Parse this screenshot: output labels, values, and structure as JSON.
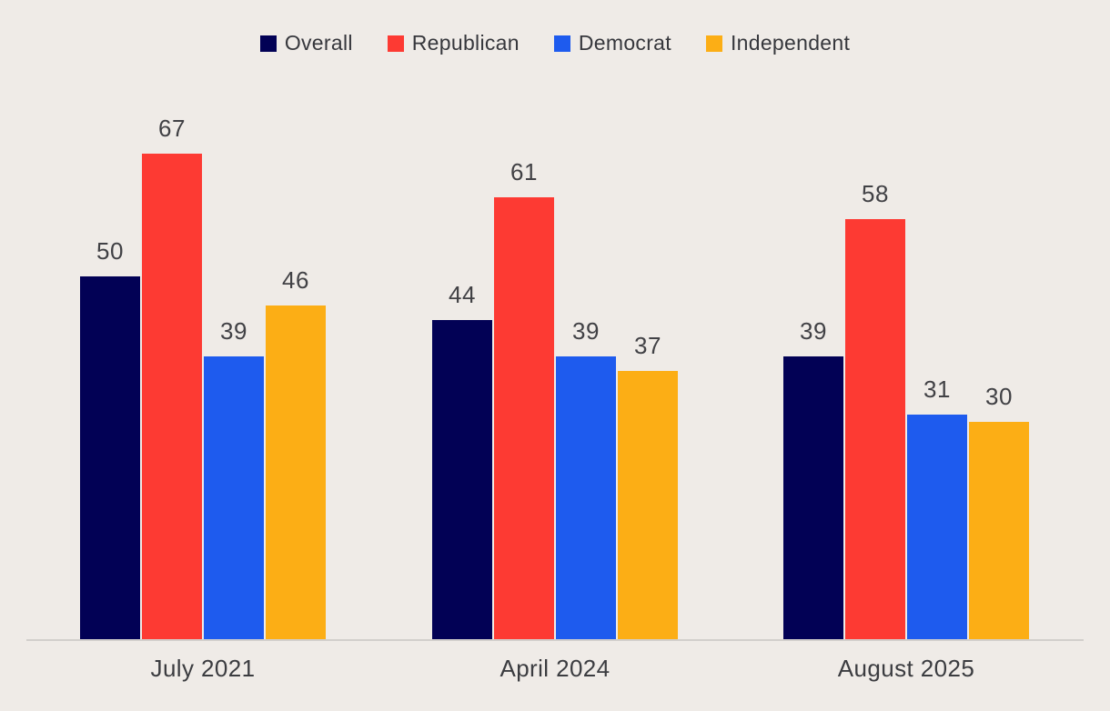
{
  "background_color": "#efebe7",
  "axis_line_color": "#d2cfcc",
  "text_color": "#3d3e42",
  "chart_data": {
    "type": "bar",
    "title": "",
    "xlabel": "",
    "ylabel": "",
    "categories": [
      "July 2021",
      "April 2024",
      "August 2025"
    ],
    "series": [
      {
        "name": "Overall",
        "color": "#020155",
        "values": [
          50,
          44,
          39
        ]
      },
      {
        "name": "Republican",
        "color": "#fd3a33",
        "values": [
          67,
          61,
          58
        ]
      },
      {
        "name": "Democrat",
        "color": "#1e5bee",
        "values": [
          39,
          39,
          31
        ]
      },
      {
        "name": "Independent",
        "color": "#fcae15",
        "values": [
          46,
          37,
          30
        ]
      }
    ],
    "value_labels": true,
    "ylim": [
      0,
      88
    ],
    "grid": false,
    "legend_position": "top-center"
  }
}
